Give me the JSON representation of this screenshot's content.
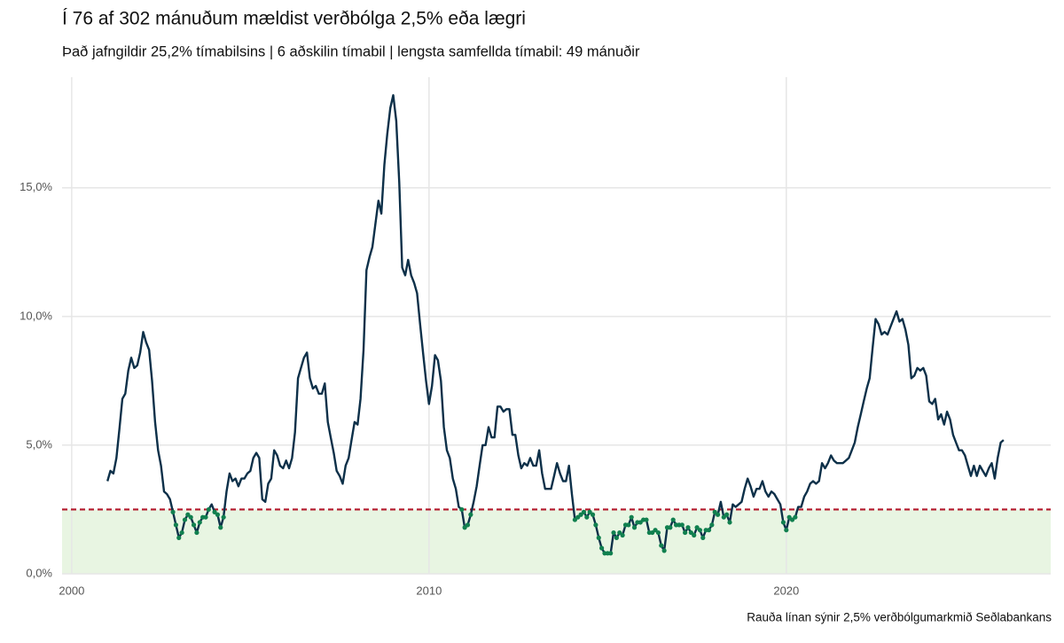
{
  "chart_data": {
    "type": "line",
    "title": "Í 76 af 302 mánuðum mældist verðbólga 2,5% eða lægri",
    "subtitle": "Það jafngildir 25,2% tímabilsins | 6 aðskilin tímabil | lengsta samfellda tímabil: 49 mánuðir",
    "caption": "Rauða línan sýnir 2,5% verðbólgumarkmið Seðlabankans",
    "x": [
      "2001-01",
      "2001-02",
      "2001-03",
      "2001-04",
      "2001-05",
      "2001-06",
      "2001-07",
      "2001-08",
      "2001-09",
      "2001-10",
      "2001-11",
      "2001-12",
      "2002-01",
      "2002-02",
      "2002-03",
      "2002-04",
      "2002-05",
      "2002-06",
      "2002-07",
      "2002-08",
      "2002-09",
      "2002-10",
      "2002-11",
      "2002-12",
      "2003-01",
      "2003-02",
      "2003-03",
      "2003-04",
      "2003-05",
      "2003-06",
      "2003-07",
      "2003-08",
      "2003-09",
      "2003-10",
      "2003-11",
      "2003-12",
      "2004-01",
      "2004-02",
      "2004-03",
      "2004-04",
      "2004-05",
      "2004-06",
      "2004-07",
      "2004-08",
      "2004-09",
      "2004-10",
      "2004-11",
      "2004-12",
      "2005-01",
      "2005-02",
      "2005-03",
      "2005-04",
      "2005-05",
      "2005-06",
      "2005-07",
      "2005-08",
      "2005-09",
      "2005-10",
      "2005-11",
      "2005-12",
      "2006-01",
      "2006-02",
      "2006-03",
      "2006-04",
      "2006-05",
      "2006-06",
      "2006-07",
      "2006-08",
      "2006-09",
      "2006-10",
      "2006-11",
      "2006-12",
      "2007-01",
      "2007-02",
      "2007-03",
      "2007-04",
      "2007-05",
      "2007-06",
      "2007-07",
      "2007-08",
      "2007-09",
      "2007-10",
      "2007-11",
      "2007-12",
      "2008-01",
      "2008-02",
      "2008-03",
      "2008-04",
      "2008-05",
      "2008-06",
      "2008-07",
      "2008-08",
      "2008-09",
      "2008-10",
      "2008-11",
      "2008-12",
      "2009-01",
      "2009-02",
      "2009-03",
      "2009-04",
      "2009-05",
      "2009-06",
      "2009-07",
      "2009-08",
      "2009-09",
      "2009-10",
      "2009-11",
      "2009-12",
      "2010-01",
      "2010-02",
      "2010-03",
      "2010-04",
      "2010-05",
      "2010-06",
      "2010-07",
      "2010-08",
      "2010-09",
      "2010-10",
      "2010-11",
      "2010-12",
      "2011-01",
      "2011-02",
      "2011-03",
      "2011-04",
      "2011-05",
      "2011-06",
      "2011-07",
      "2011-08",
      "2011-09",
      "2011-10",
      "2011-11",
      "2011-12",
      "2012-01",
      "2012-02",
      "2012-03",
      "2012-04",
      "2012-05",
      "2012-06",
      "2012-07",
      "2012-08",
      "2012-09",
      "2012-10",
      "2012-11",
      "2012-12",
      "2013-01",
      "2013-02",
      "2013-03",
      "2013-04",
      "2013-05",
      "2013-06",
      "2013-07",
      "2013-08",
      "2013-09",
      "2013-10",
      "2013-11",
      "2013-12",
      "2014-01",
      "2014-02",
      "2014-03",
      "2014-04",
      "2014-05",
      "2014-06",
      "2014-07",
      "2014-08",
      "2014-09",
      "2014-10",
      "2014-11",
      "2014-12",
      "2015-01",
      "2015-02",
      "2015-03",
      "2015-04",
      "2015-05",
      "2015-06",
      "2015-07",
      "2015-08",
      "2015-09",
      "2015-10",
      "2015-11",
      "2015-12",
      "2016-01",
      "2016-02",
      "2016-03",
      "2016-04",
      "2016-05",
      "2016-06",
      "2016-07",
      "2016-08",
      "2016-09",
      "2016-10",
      "2016-11",
      "2016-12",
      "2017-01",
      "2017-02",
      "2017-03",
      "2017-04",
      "2017-05",
      "2017-06",
      "2017-07",
      "2017-08",
      "2017-09",
      "2017-10",
      "2017-11",
      "2017-12",
      "2018-01",
      "2018-02",
      "2018-03",
      "2018-04",
      "2018-05",
      "2018-06",
      "2018-07",
      "2018-08",
      "2018-09",
      "2018-10",
      "2018-11",
      "2018-12",
      "2019-01",
      "2019-02",
      "2019-03",
      "2019-04",
      "2019-05",
      "2019-06",
      "2019-07",
      "2019-08",
      "2019-09",
      "2019-10",
      "2019-11",
      "2019-12",
      "2020-01",
      "2020-02",
      "2020-03",
      "2020-04",
      "2020-05",
      "2020-06",
      "2020-07",
      "2020-08",
      "2020-09",
      "2020-10",
      "2020-11",
      "2020-12",
      "2021-01",
      "2021-02",
      "2021-03",
      "2021-04",
      "2021-05",
      "2021-06",
      "2021-07",
      "2021-08",
      "2021-09",
      "2021-10",
      "2021-11",
      "2021-12",
      "2022-01",
      "2022-02",
      "2022-03",
      "2022-04",
      "2022-05",
      "2022-06",
      "2022-07",
      "2022-08",
      "2022-09",
      "2022-10",
      "2022-11",
      "2022-12",
      "2023-01",
      "2023-02",
      "2023-03",
      "2023-04",
      "2023-05",
      "2023-06",
      "2023-07",
      "2023-08",
      "2023-09",
      "2023-10",
      "2023-11",
      "2023-12",
      "2024-01",
      "2024-02",
      "2024-03",
      "2024-04",
      "2024-05",
      "2024-06",
      "2024-07",
      "2024-08",
      "2024-09",
      "2024-10",
      "2024-11",
      "2024-12",
      "2025-01",
      "2025-02",
      "2025-03",
      "2025-04",
      "2025-05",
      "2025-06",
      "2025-07",
      "2025-08",
      "2025-09",
      "2025-10",
      "2025-11",
      "2025-12",
      "2026-01",
      "2026-02"
    ],
    "values": [
      3.6,
      4.0,
      3.9,
      4.5,
      5.6,
      6.8,
      7.0,
      7.9,
      8.4,
      8.0,
      8.1,
      8.6,
      9.4,
      9.0,
      8.7,
      7.5,
      5.9,
      4.8,
      4.2,
      3.2,
      3.1,
      2.9,
      2.4,
      1.9,
      1.4,
      1.6,
      2.1,
      2.3,
      2.2,
      1.9,
      1.6,
      2.0,
      2.2,
      2.2,
      2.5,
      2.7,
      2.4,
      2.3,
      1.8,
      2.2,
      3.2,
      3.9,
      3.6,
      3.7,
      3.4,
      3.7,
      3.7,
      3.9,
      4.0,
      4.5,
      4.7,
      4.5,
      2.9,
      2.8,
      3.5,
      3.7,
      4.8,
      4.6,
      4.2,
      4.1,
      4.4,
      4.1,
      4.5,
      5.5,
      7.6,
      8.0,
      8.4,
      8.6,
      7.6,
      7.2,
      7.3,
      7.0,
      7.0,
      7.4,
      5.9,
      5.3,
      4.7,
      4.0,
      3.8,
      3.5,
      4.2,
      4.5,
      5.2,
      5.9,
      5.8,
      6.8,
      8.7,
      11.8,
      12.3,
      12.7,
      13.6,
      14.5,
      14.0,
      15.9,
      17.1,
      18.1,
      18.6,
      17.6,
      15.2,
      11.9,
      11.6,
      12.2,
      11.6,
      11.3,
      10.9,
      9.7,
      8.6,
      7.5,
      6.6,
      7.3,
      8.5,
      8.3,
      7.5,
      5.7,
      4.8,
      4.5,
      3.7,
      3.3,
      2.6,
      2.5,
      1.8,
      1.9,
      2.3,
      2.8,
      3.4,
      4.2,
      5.0,
      5.0,
      5.7,
      5.3,
      5.3,
      6.5,
      6.5,
      6.3,
      6.4,
      6.4,
      5.4,
      5.4,
      4.6,
      4.1,
      4.3,
      4.2,
      4.5,
      4.2,
      4.2,
      4.8,
      3.9,
      3.3,
      3.3,
      3.3,
      3.8,
      4.3,
      3.9,
      3.6,
      3.6,
      4.2,
      3.1,
      2.1,
      2.2,
      2.3,
      2.4,
      2.2,
      2.4,
      2.3,
      1.9,
      1.4,
      1.0,
      0.8,
      0.8,
      0.8,
      1.6,
      1.4,
      1.6,
      1.5,
      1.9,
      1.9,
      2.2,
      1.8,
      2.0,
      2.0,
      2.1,
      2.1,
      1.6,
      1.6,
      1.7,
      1.6,
      1.1,
      0.9,
      1.8,
      1.8,
      2.1,
      1.9,
      1.9,
      1.9,
      1.6,
      1.8,
      1.6,
      1.5,
      1.8,
      1.7,
      1.4,
      1.7,
      1.7,
      1.9,
      2.4,
      2.3,
      2.8,
      2.2,
      2.3,
      2.0,
      2.7,
      2.6,
      2.7,
      2.8,
      3.3,
      3.7,
      3.4,
      3.0,
      3.3,
      3.3,
      3.6,
      3.2,
      3.0,
      3.2,
      3.1,
      2.9,
      2.7,
      2.0,
      1.7,
      2.2,
      2.1,
      2.2,
      2.6,
      2.6,
      3.0,
      3.2,
      3.5,
      3.6,
      3.5,
      3.6,
      4.3,
      4.1,
      4.3,
      4.6,
      4.4,
      4.3,
      4.3,
      4.3,
      4.4,
      4.5,
      4.8,
      5.1,
      5.7,
      6.2,
      6.7,
      7.2,
      7.6,
      8.8,
      9.9,
      9.7,
      9.3,
      9.4,
      9.3,
      9.6,
      9.9,
      10.2,
      9.8,
      9.9,
      9.5,
      8.9,
      7.6,
      7.7,
      8.0,
      7.9,
      8.0,
      7.7,
      6.7,
      6.6,
      6.8,
      6.0,
      6.2,
      5.8,
      6.3,
      6.0,
      5.4,
      5.1,
      4.8,
      4.8,
      4.6,
      4.2,
      3.8,
      4.2,
      3.8,
      4.2,
      4.0,
      3.8,
      4.1,
      4.3,
      3.7,
      4.5,
      5.1,
      5.2
    ],
    "color": "#0d3049",
    "highlight_color": "#11804f",
    "target": 2.5,
    "target_color": "#b2182b",
    "band_color": "#e8f5e2",
    "xlim": [
      1999.73,
      2027.4
    ],
    "xticks": [
      2000,
      2010,
      2020
    ],
    "ylim": [
      0,
      19.3
    ],
    "yticks": [
      {
        "value": 0,
        "label": "0,0%"
      },
      {
        "value": 5,
        "label": "5,0%"
      },
      {
        "value": 10,
        "label": "10,0%"
      },
      {
        "value": 15,
        "label": "15,0%"
      }
    ],
    "grid": true
  }
}
